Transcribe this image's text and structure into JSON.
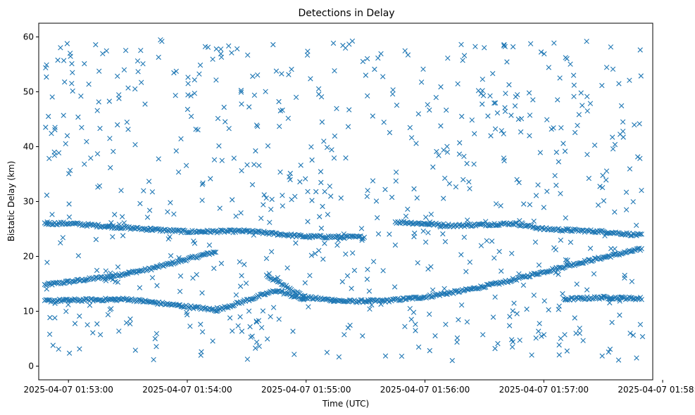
{
  "chart_data": {
    "type": "scatter",
    "title": "Detections in Delay",
    "xlabel": "Time (UTC)",
    "ylabel": "Bistatic Delay (km)",
    "x_axis": {
      "kind": "time",
      "range": [
        "2025-04-07 01:52:45",
        "2025-04-07 01:57:55"
      ],
      "ticks": [
        "2025-04-07 01:53:00",
        "2025-04-07 01:54:00",
        "2025-04-07 01:55:00",
        "2025-04-07 01:56:00",
        "2025-04-07 01:57:00",
        "2025-04-07 01:58:00"
      ]
    },
    "y_axis": {
      "range": [
        -2.5,
        62.5
      ],
      "ticks": [
        0,
        10,
        20,
        30,
        40,
        50,
        60
      ]
    },
    "grid": false,
    "legend": "none",
    "marker": "x",
    "color": "#1f77b4",
    "series": [
      {
        "tracks": [
          {
            "points": [
              [
                "2025-04-07 01:52:48",
                14.8
              ],
              [
                "2025-04-07 01:53:20",
                16.3
              ],
              [
                "2025-04-07 01:53:40",
                17.6
              ],
              [
                "2025-04-07 01:54:00",
                19.5
              ],
              [
                "2025-04-07 01:54:15",
                20.9
              ]
            ]
          },
          {
            "points": [
              [
                "2025-04-07 01:54:40",
                16.5
              ],
              [
                "2025-04-07 01:55:00",
                12.5
              ],
              [
                "2025-04-07 01:55:20",
                11.8
              ],
              [
                "2025-04-07 01:55:40",
                11.9
              ],
              [
                "2025-04-07 01:56:00",
                12.6
              ],
              [
                "2025-04-07 01:56:20",
                13.8
              ],
              [
                "2025-04-07 01:56:40",
                15.3
              ],
              [
                "2025-04-07 01:57:00",
                17.2
              ],
              [
                "2025-04-07 01:57:20",
                19.0
              ],
              [
                "2025-04-07 01:57:50",
                21.4
              ]
            ]
          },
          {
            "points": [
              [
                "2025-04-07 01:52:48",
                26.0
              ],
              [
                "2025-04-07 01:53:00",
                26.0
              ],
              [
                "2025-04-07 01:53:30",
                25.2
              ],
              [
                "2025-04-07 01:54:00",
                24.5
              ],
              [
                "2025-04-07 01:54:30",
                24.6
              ],
              [
                "2025-04-07 01:55:00",
                23.6
              ],
              [
                "2025-04-07 01:55:30",
                23.5
              ]
            ]
          },
          {
            "points": [
              [
                "2025-04-07 01:55:45",
                26.3
              ],
              [
                "2025-04-07 01:56:15",
                25.6
              ],
              [
                "2025-04-07 01:56:45",
                26.0
              ],
              [
                "2025-04-07 01:57:00",
                25.0
              ],
              [
                "2025-04-07 01:57:30",
                24.5
              ],
              [
                "2025-04-07 01:57:50",
                23.8
              ]
            ]
          },
          {
            "points": [
              [
                "2025-04-07 01:52:48",
                11.9
              ],
              [
                "2025-04-07 01:53:30",
                12.2
              ],
              [
                "2025-04-07 01:53:45",
                11.5
              ],
              [
                "2025-04-07 01:54:15",
                10.2
              ],
              [
                "2025-04-07 01:54:45",
                13.8
              ],
              [
                "2025-04-07 01:55:00",
                12.0
              ]
            ]
          },
          {
            "points": [
              [
                "2025-04-07 01:57:10",
                12.2
              ],
              [
                "2025-04-07 01:57:30",
                12.5
              ],
              [
                "2025-04-07 01:57:50",
                12.3
              ]
            ]
          }
        ],
        "clutter": {
          "count": 700,
          "x_range": [
            "2025-04-07 01:52:48",
            "2025-04-07 01:57:50"
          ],
          "y_range": [
            1,
            59.5
          ]
        }
      }
    ]
  }
}
